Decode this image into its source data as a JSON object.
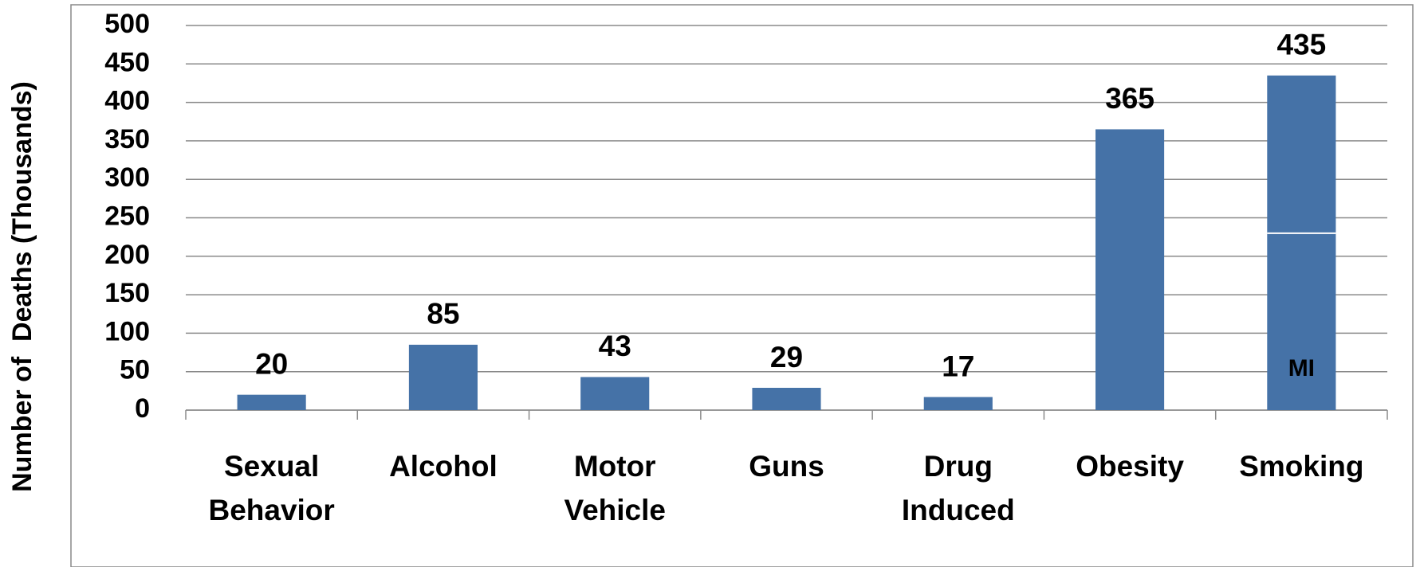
{
  "chart_data": {
    "type": "bar",
    "y_label": "Number of  Deaths (Thousands)",
    "categories": [
      "Sexual Behavior",
      "Alcohol",
      "Motor Vehicle",
      "Guns",
      "Drug Induced",
      "Obesity",
      "Smoking"
    ],
    "values": [
      20,
      85,
      43,
      29,
      17,
      365,
      435
    ],
    "color": "#4572a7",
    "ylim": [
      0,
      500
    ],
    "yticks": [
      0,
      50,
      100,
      150,
      200,
      250,
      300,
      350,
      400,
      450,
      500
    ],
    "grid": true,
    "annotations": [
      {
        "text": "MI",
        "category": "Smoking",
        "value": 230
      }
    ]
  }
}
